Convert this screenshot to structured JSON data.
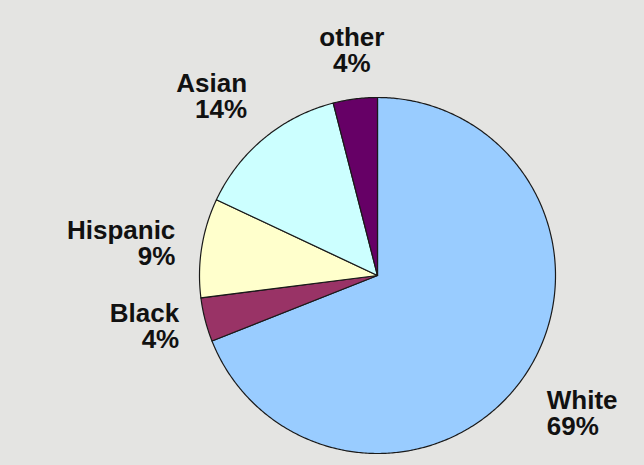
{
  "chart_data": {
    "type": "pie",
    "categories": [
      "White",
      "Black",
      "Hispanic",
      "Asian",
      "other"
    ],
    "values": [
      69,
      4,
      9,
      14,
      4
    ],
    "value_labels": [
      "69%",
      "4%",
      "9%",
      "14%",
      "4%"
    ],
    "colors": [
      "#99ccff",
      "#993366",
      "#ffffcc",
      "#ccffff",
      "#660066"
    ],
    "data_labels": true
  }
}
